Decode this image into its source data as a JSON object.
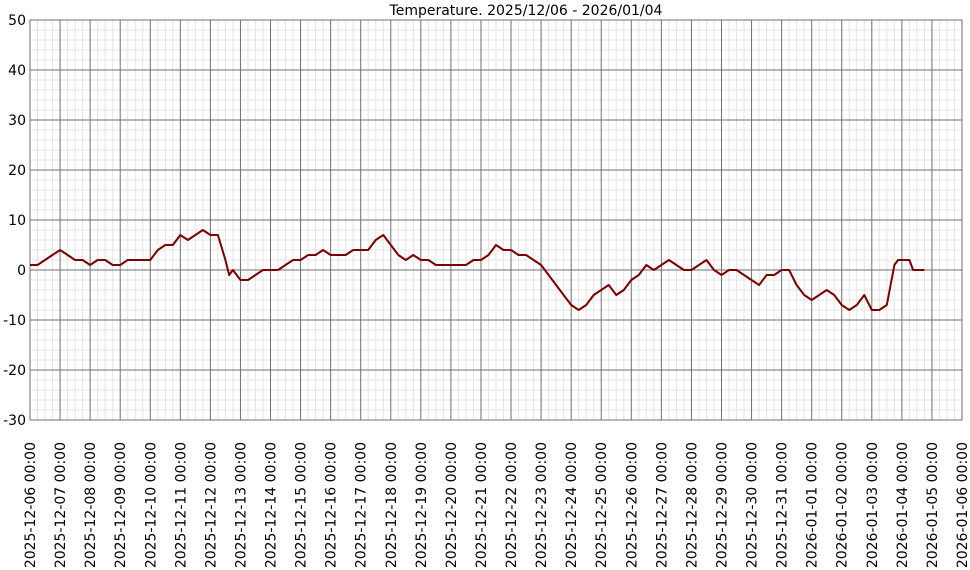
{
  "chart_data": {
    "type": "line",
    "title": "Temperature. 2025/12/06 - 2026/01/04",
    "xlabel": "",
    "ylabel": "",
    "ylim": [
      -30,
      50
    ],
    "xlim": [
      "2025-12-06 00:00",
      "2026-01-06 00:00"
    ],
    "grid": true,
    "line_color": "#7a0000",
    "y_ticks": [
      "50",
      "40",
      "30",
      "20",
      "10",
      "0",
      "-10",
      "-20",
      "-30"
    ],
    "x_ticks": [
      "2025-12-06 00:00",
      "2025-12-07 00:00",
      "2025-12-08 00:00",
      "2025-12-09 00:00",
      "2025-12-10 00:00",
      "2025-12-11 00:00",
      "2025-12-12 00:00",
      "2025-12-13 00:00",
      "2025-12-14 00:00",
      "2025-12-15 00:00",
      "2025-12-16 00:00",
      "2025-12-17 00:00",
      "2025-12-18 00:00",
      "2025-12-19 00:00",
      "2025-12-20 00:00",
      "2025-12-21 00:00",
      "2025-12-22 00:00",
      "2025-12-23 00:00",
      "2025-12-24 00:00",
      "2025-12-25 00:00",
      "2025-12-26 00:00",
      "2025-12-27 00:00",
      "2025-12-28 00:00",
      "2025-12-29 00:00",
      "2025-12-30 00:00",
      "2025-12-31 00:00",
      "2026-01-01 00:00",
      "2026-01-02 00:00",
      "2026-01-03 00:00",
      "2026-01-04 00:00",
      "2026-01-05 00:00",
      "2026-01-06 00:00"
    ],
    "series": [
      {
        "points": [
          [
            "2025-12-06 00:00",
            1
          ],
          [
            "2025-12-06 06:00",
            1
          ],
          [
            "2025-12-06 12:00",
            2
          ],
          [
            "2025-12-06 18:00",
            3
          ],
          [
            "2025-12-07 00:00",
            4
          ],
          [
            "2025-12-07 06:00",
            3
          ],
          [
            "2025-12-07 12:00",
            2
          ],
          [
            "2025-12-07 18:00",
            2
          ],
          [
            "2025-12-08 00:00",
            1
          ],
          [
            "2025-12-08 06:00",
            2
          ],
          [
            "2025-12-08 12:00",
            2
          ],
          [
            "2025-12-08 18:00",
            1
          ],
          [
            "2025-12-09 00:00",
            1
          ],
          [
            "2025-12-09 06:00",
            2
          ],
          [
            "2025-12-09 12:00",
            2
          ],
          [
            "2025-12-09 18:00",
            2
          ],
          [
            "2025-12-10 00:00",
            2
          ],
          [
            "2025-12-10 06:00",
            4
          ],
          [
            "2025-12-10 12:00",
            5
          ],
          [
            "2025-12-10 18:00",
            5
          ],
          [
            "2025-12-11 00:00",
            7
          ],
          [
            "2025-12-11 06:00",
            6
          ],
          [
            "2025-12-11 12:00",
            7
          ],
          [
            "2025-12-11 18:00",
            8
          ],
          [
            "2025-12-12 00:00",
            7
          ],
          [
            "2025-12-12 06:00",
            7
          ],
          [
            "2025-12-12 12:00",
            2
          ],
          [
            "2025-12-12 15:00",
            -1
          ],
          [
            "2025-12-12 18:00",
            0
          ],
          [
            "2025-12-13 00:00",
            -2
          ],
          [
            "2025-12-13 06:00",
            -2
          ],
          [
            "2025-12-13 12:00",
            -1
          ],
          [
            "2025-12-13 18:00",
            0
          ],
          [
            "2025-12-14 00:00",
            0
          ],
          [
            "2025-12-14 06:00",
            0
          ],
          [
            "2025-12-14 12:00",
            1
          ],
          [
            "2025-12-14 18:00",
            2
          ],
          [
            "2025-12-15 00:00",
            2
          ],
          [
            "2025-12-15 06:00",
            3
          ],
          [
            "2025-12-15 12:00",
            3
          ],
          [
            "2025-12-15 18:00",
            4
          ],
          [
            "2025-12-16 00:00",
            3
          ],
          [
            "2025-12-16 06:00",
            3
          ],
          [
            "2025-12-16 12:00",
            3
          ],
          [
            "2025-12-16 18:00",
            4
          ],
          [
            "2025-12-17 00:00",
            4
          ],
          [
            "2025-12-17 06:00",
            4
          ],
          [
            "2025-12-17 12:00",
            6
          ],
          [
            "2025-12-17 18:00",
            7
          ],
          [
            "2025-12-18 00:00",
            5
          ],
          [
            "2025-12-18 06:00",
            3
          ],
          [
            "2025-12-18 12:00",
            2
          ],
          [
            "2025-12-18 18:00",
            3
          ],
          [
            "2025-12-19 00:00",
            2
          ],
          [
            "2025-12-19 06:00",
            2
          ],
          [
            "2025-12-19 12:00",
            1
          ],
          [
            "2025-12-19 18:00",
            1
          ],
          [
            "2025-12-20 00:00",
            1
          ],
          [
            "2025-12-20 06:00",
            1
          ],
          [
            "2025-12-20 12:00",
            1
          ],
          [
            "2025-12-20 18:00",
            2
          ],
          [
            "2025-12-21 00:00",
            2
          ],
          [
            "2025-12-21 06:00",
            3
          ],
          [
            "2025-12-21 12:00",
            5
          ],
          [
            "2025-12-21 18:00",
            4
          ],
          [
            "2025-12-22 00:00",
            4
          ],
          [
            "2025-12-22 06:00",
            3
          ],
          [
            "2025-12-22 12:00",
            3
          ],
          [
            "2025-12-22 18:00",
            2
          ],
          [
            "2025-12-23 00:00",
            1
          ],
          [
            "2025-12-23 06:00",
            -1
          ],
          [
            "2025-12-23 12:00",
            -3
          ],
          [
            "2025-12-23 18:00",
            -5
          ],
          [
            "2025-12-24 00:00",
            -7
          ],
          [
            "2025-12-24 06:00",
            -8
          ],
          [
            "2025-12-24 12:00",
            -7
          ],
          [
            "2025-12-24 18:00",
            -5
          ],
          [
            "2025-12-25 00:00",
            -4
          ],
          [
            "2025-12-25 06:00",
            -3
          ],
          [
            "2025-12-25 12:00",
            -5
          ],
          [
            "2025-12-25 18:00",
            -4
          ],
          [
            "2025-12-26 00:00",
            -2
          ],
          [
            "2025-12-26 06:00",
            -1
          ],
          [
            "2025-12-26 12:00",
            1
          ],
          [
            "2025-12-26 18:00",
            0
          ],
          [
            "2025-12-27 00:00",
            1
          ],
          [
            "2025-12-27 06:00",
            2
          ],
          [
            "2025-12-27 12:00",
            1
          ],
          [
            "2025-12-27 18:00",
            0
          ],
          [
            "2025-12-28 00:00",
            0
          ],
          [
            "2025-12-28 06:00",
            1
          ],
          [
            "2025-12-28 12:00",
            2
          ],
          [
            "2025-12-28 18:00",
            0
          ],
          [
            "2025-12-29 00:00",
            -1
          ],
          [
            "2025-12-29 06:00",
            0
          ],
          [
            "2025-12-29 12:00",
            0
          ],
          [
            "2025-12-29 18:00",
            -1
          ],
          [
            "2025-12-30 00:00",
            -2
          ],
          [
            "2025-12-30 06:00",
            -3
          ],
          [
            "2025-12-30 12:00",
            -1
          ],
          [
            "2025-12-30 18:00",
            -1
          ],
          [
            "2025-12-31 00:00",
            0
          ],
          [
            "2025-12-31 06:00",
            0
          ],
          [
            "2025-12-31 12:00",
            -3
          ],
          [
            "2025-12-31 18:00",
            -5
          ],
          [
            "2026-01-01 00:00",
            -6
          ],
          [
            "2026-01-01 06:00",
            -5
          ],
          [
            "2026-01-01 12:00",
            -4
          ],
          [
            "2026-01-01 18:00",
            -5
          ],
          [
            "2026-01-02 00:00",
            -7
          ],
          [
            "2026-01-02 06:00",
            -8
          ],
          [
            "2026-01-02 12:00",
            -7
          ],
          [
            "2026-01-02 18:00",
            -5
          ],
          [
            "2026-01-03 00:00",
            -8
          ],
          [
            "2026-01-03 06:00",
            -8
          ],
          [
            "2026-01-03 12:00",
            -7
          ],
          [
            "2026-01-03 15:00",
            -3
          ],
          [
            "2026-01-03 18:00",
            1
          ],
          [
            "2026-01-03 21:00",
            2
          ],
          [
            "2026-01-04 06:00",
            2
          ],
          [
            "2026-01-04 09:00",
            0
          ],
          [
            "2026-01-04 18:00",
            0
          ]
        ]
      }
    ]
  }
}
